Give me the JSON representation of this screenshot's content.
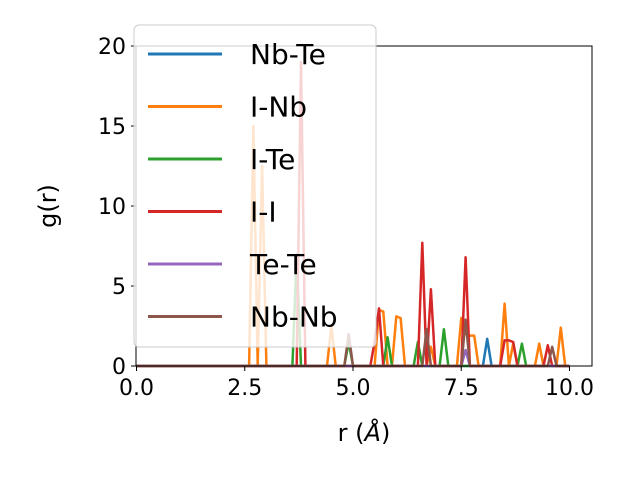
{
  "chart_data": {
    "type": "line",
    "xlabel_text": "r (",
    "xlabel_unit": "Å",
    "xlabel_close": ")",
    "ylabel": "g(r)",
    "xlim": [
      0.0,
      10.0
    ],
    "ylim": [
      0,
      20
    ],
    "xticks": [
      0.0,
      2.5,
      5.0,
      7.5,
      10.0
    ],
    "xtick_labels": [
      "0.0",
      "2.5",
      "5.0",
      "7.5",
      "10.0"
    ],
    "yticks": [
      0,
      5,
      10,
      15,
      20
    ],
    "ytick_labels": [
      "0",
      "5",
      "10",
      "15",
      "20"
    ],
    "grid": false,
    "legend_position": "upper-left",
    "series": [
      {
        "name": "Nb-Te",
        "color": "#1f77b4",
        "points": [
          [
            0,
            0
          ],
          [
            8.0,
            0
          ],
          [
            8.1,
            1.7
          ],
          [
            8.2,
            0
          ],
          [
            10,
            0
          ]
        ]
      },
      {
        "name": "I-Nb",
        "color": "#ff7f0e",
        "points": [
          [
            0,
            0
          ],
          [
            2.6,
            0
          ],
          [
            2.7,
            15.0
          ],
          [
            2.8,
            0
          ],
          [
            2.9,
            12.5
          ],
          [
            3.0,
            0
          ],
          [
            4.4,
            0
          ],
          [
            4.5,
            2.5
          ],
          [
            4.6,
            0
          ],
          [
            5.5,
            0
          ],
          [
            5.6,
            3.5
          ],
          [
            5.7,
            3.4
          ],
          [
            5.8,
            0
          ],
          [
            5.9,
            0
          ],
          [
            6.0,
            3.1
          ],
          [
            6.1,
            3.0
          ],
          [
            6.2,
            0
          ],
          [
            6.7,
            0
          ],
          [
            6.8,
            1.2
          ],
          [
            6.9,
            0
          ],
          [
            7.4,
            0
          ],
          [
            7.5,
            3.0
          ],
          [
            7.6,
            2.0
          ],
          [
            7.7,
            1.9
          ],
          [
            7.8,
            1.9
          ],
          [
            7.9,
            0
          ],
          [
            8.4,
            0
          ],
          [
            8.5,
            3.9
          ],
          [
            8.6,
            0
          ],
          [
            8.7,
            1.4
          ],
          [
            8.8,
            0
          ],
          [
            9.2,
            0
          ],
          [
            9.3,
            1.4
          ],
          [
            9.4,
            0
          ],
          [
            9.7,
            0
          ],
          [
            9.8,
            2.4
          ],
          [
            9.9,
            0
          ]
        ]
      },
      {
        "name": "I-Te",
        "color": "#2ca02c",
        "points": [
          [
            0,
            0
          ],
          [
            3.6,
            0
          ],
          [
            3.7,
            7.0
          ],
          [
            3.8,
            0
          ],
          [
            4.8,
            0
          ],
          [
            4.9,
            1.5
          ],
          [
            5.0,
            0
          ],
          [
            5.7,
            0
          ],
          [
            5.8,
            1.8
          ],
          [
            5.9,
            0
          ],
          [
            6.4,
            0
          ],
          [
            6.5,
            1.5
          ],
          [
            6.6,
            0
          ],
          [
            7.0,
            0
          ],
          [
            7.1,
            2.3
          ],
          [
            7.2,
            0
          ],
          [
            8.8,
            0
          ],
          [
            8.9,
            1.4
          ],
          [
            9.0,
            0
          ],
          [
            10,
            0
          ]
        ]
      },
      {
        "name": "I-I",
        "color": "#d62728",
        "points": [
          [
            0,
            0
          ],
          [
            3.7,
            0
          ],
          [
            3.8,
            19.0
          ],
          [
            3.9,
            0
          ],
          [
            5.4,
            0
          ],
          [
            5.5,
            1.5
          ],
          [
            5.6,
            3.6
          ],
          [
            5.7,
            0
          ],
          [
            6.5,
            0
          ],
          [
            6.6,
            7.7
          ],
          [
            6.7,
            0
          ],
          [
            6.8,
            4.8
          ],
          [
            6.9,
            0
          ],
          [
            7.5,
            0
          ],
          [
            7.6,
            6.8
          ],
          [
            7.7,
            0
          ],
          [
            8.4,
            0
          ],
          [
            8.5,
            1.6
          ],
          [
            8.6,
            1.6
          ],
          [
            8.7,
            1.5
          ],
          [
            8.8,
            0
          ],
          [
            9.4,
            0
          ],
          [
            9.5,
            1.3
          ],
          [
            9.6,
            0
          ],
          [
            10,
            0
          ]
        ]
      },
      {
        "name": "Te-Te",
        "color": "#9467bd",
        "points": [
          [
            0,
            0
          ],
          [
            7.5,
            0
          ],
          [
            7.6,
            1.0
          ],
          [
            7.7,
            0
          ],
          [
            10,
            0
          ]
        ]
      },
      {
        "name": "Nb-Nb",
        "color": "#8c564b",
        "points": [
          [
            0,
            0
          ],
          [
            4.8,
            0
          ],
          [
            4.9,
            2.0
          ],
          [
            5.0,
            0
          ],
          [
            6.6,
            0
          ],
          [
            6.7,
            2.3
          ],
          [
            6.8,
            0
          ],
          [
            7.5,
            0
          ],
          [
            7.6,
            2.9
          ],
          [
            7.7,
            0
          ],
          [
            9.5,
            0
          ],
          [
            9.6,
            1.2
          ],
          [
            9.7,
            0
          ],
          [
            10,
            0
          ]
        ]
      }
    ]
  }
}
